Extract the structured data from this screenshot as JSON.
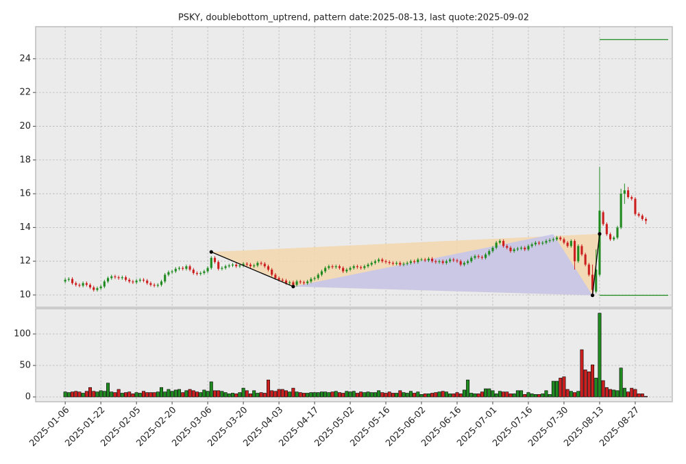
{
  "chart_data": {
    "type": "candlestick",
    "title": "PSKY, doublebottom_uptrend, pattern date:2025-08-13, last quote:2025-09-02",
    "x": [
      "2025-01-06",
      "2025-01-07",
      "2025-01-08",
      "2025-01-10",
      "2025-01-13",
      "2025-01-14",
      "2025-01-15",
      "2025-01-16",
      "2025-01-17",
      "2025-01-21",
      "2025-01-22",
      "2025-01-23",
      "2025-01-24",
      "2025-01-27",
      "2025-01-28",
      "2025-01-29",
      "2025-01-30",
      "2025-01-31",
      "2025-02-03",
      "2025-02-04",
      "2025-02-05",
      "2025-02-06",
      "2025-02-07",
      "2025-02-10",
      "2025-02-11",
      "2025-02-12",
      "2025-02-13",
      "2025-02-14",
      "2025-02-18",
      "2025-02-19",
      "2025-02-20",
      "2025-02-21",
      "2025-02-24",
      "2025-02-25",
      "2025-02-26",
      "2025-02-27",
      "2025-02-28",
      "2025-03-03",
      "2025-03-04",
      "2025-03-05",
      "2025-03-06",
      "2025-03-07",
      "2025-03-10",
      "2025-03-11",
      "2025-03-12",
      "2025-03-13",
      "2025-03-14",
      "2025-03-17",
      "2025-03-18",
      "2025-03-19",
      "2025-03-20",
      "2025-03-21",
      "2025-03-24",
      "2025-03-25",
      "2025-03-26",
      "2025-03-27",
      "2025-03-28",
      "2025-03-31",
      "2025-04-01",
      "2025-04-02",
      "2025-04-03",
      "2025-04-04",
      "2025-04-07",
      "2025-04-08",
      "2025-04-09",
      "2025-04-10",
      "2025-04-11",
      "2025-04-14",
      "2025-04-15",
      "2025-04-16",
      "2025-04-17",
      "2025-04-21",
      "2025-04-22",
      "2025-04-23",
      "2025-04-24",
      "2025-04-25",
      "2025-04-28",
      "2025-04-29",
      "2025-04-30",
      "2025-05-01",
      "2025-05-02",
      "2025-05-05",
      "2025-05-06",
      "2025-05-07",
      "2025-05-08",
      "2025-05-09",
      "2025-05-12",
      "2025-05-13",
      "2025-05-14",
      "2025-05-15",
      "2025-05-16",
      "2025-05-19",
      "2025-05-20",
      "2025-05-21",
      "2025-05-22",
      "2025-05-23",
      "2025-05-27",
      "2025-05-28",
      "2025-05-29",
      "2025-05-30",
      "2025-06-02",
      "2025-06-03",
      "2025-06-04",
      "2025-06-05",
      "2025-06-06",
      "2025-06-09",
      "2025-06-10",
      "2025-06-11",
      "2025-06-12",
      "2025-06-13",
      "2025-06-16",
      "2025-06-17",
      "2025-06-18",
      "2025-06-20",
      "2025-06-23",
      "2025-06-24",
      "2025-06-25",
      "2025-06-26",
      "2025-06-27",
      "2025-06-30",
      "2025-07-01",
      "2025-07-02",
      "2025-07-03",
      "2025-07-07",
      "2025-07-08",
      "2025-07-09",
      "2025-07-10",
      "2025-07-11",
      "2025-07-14",
      "2025-07-15",
      "2025-07-16",
      "2025-07-17",
      "2025-07-18",
      "2025-07-21",
      "2025-07-22",
      "2025-07-23",
      "2025-07-24",
      "2025-07-25",
      "2025-07-28",
      "2025-07-29",
      "2025-07-30",
      "2025-07-31",
      "2025-08-01",
      "2025-08-04",
      "2025-08-05",
      "2025-08-06",
      "2025-08-07",
      "2025-08-08",
      "2025-08-11",
      "2025-08-12",
      "2025-08-13",
      "2025-08-14",
      "2025-08-15",
      "2025-08-18",
      "2025-08-19",
      "2025-08-20",
      "2025-08-21",
      "2025-08-22",
      "2025-08-25",
      "2025-08-26",
      "2025-08-27",
      "2025-08-28",
      "2025-08-29",
      "2025-09-02"
    ],
    "open": [
      10.8,
      10.9,
      10.95,
      10.7,
      10.6,
      10.55,
      10.7,
      10.6,
      10.45,
      10.3,
      10.4,
      10.5,
      10.8,
      11.0,
      11.1,
      11.05,
      11.0,
      11.05,
      10.9,
      10.8,
      10.75,
      10.85,
      10.9,
      10.85,
      10.7,
      10.6,
      10.55,
      10.6,
      10.8,
      11.2,
      11.35,
      11.4,
      11.55,
      11.6,
      11.55,
      11.7,
      11.5,
      11.3,
      11.25,
      11.3,
      11.4,
      11.6,
      12.2,
      11.95,
      11.55,
      11.6,
      11.7,
      11.75,
      11.8,
      11.7,
      11.75,
      11.85,
      11.8,
      11.7,
      11.75,
      11.9,
      11.85,
      11.7,
      11.5,
      11.2,
      11.0,
      10.9,
      10.85,
      10.7,
      10.75,
      10.6,
      10.8,
      10.75,
      10.7,
      10.8,
      10.95,
      11.0,
      11.2,
      11.4,
      11.6,
      11.7,
      11.65,
      11.7,
      11.6,
      11.4,
      11.5,
      11.6,
      11.7,
      11.65,
      11.6,
      11.7,
      11.8,
      11.9,
      12.0,
      12.1,
      12.0,
      11.95,
      11.9,
      11.85,
      11.9,
      11.8,
      11.85,
      11.9,
      12.0,
      11.95,
      12.1,
      12.1,
      12.05,
      12.15,
      12.0,
      11.95,
      12.0,
      11.9,
      12.0,
      12.1,
      12.05,
      12.0,
      11.8,
      11.9,
      12.0,
      12.2,
      12.3,
      12.25,
      12.2,
      12.4,
      12.6,
      12.8,
      13.1,
      13.2,
      12.9,
      12.8,
      12.6,
      12.7,
      12.75,
      12.8,
      12.7,
      12.9,
      13.0,
      13.1,
      13.05,
      13.1,
      13.2,
      13.25,
      13.3,
      13.4,
      13.3,
      13.1,
      12.9,
      13.2,
      12.0,
      12.9,
      12.4,
      11.8,
      11.2,
      10.2,
      11.2,
      14.9,
      14.2,
      13.6,
      13.3,
      13.4,
      14.0,
      16.0,
      16.2,
      15.8,
      15.7,
      14.8,
      14.7,
      14.5
    ],
    "high": [
      11.0,
      11.05,
      11.05,
      10.8,
      10.7,
      10.8,
      10.8,
      10.7,
      10.55,
      10.5,
      10.6,
      10.9,
      11.1,
      11.2,
      11.2,
      11.15,
      11.15,
      11.15,
      11.0,
      10.9,
      10.95,
      11.0,
      11.0,
      10.95,
      10.8,
      10.7,
      10.7,
      10.9,
      11.3,
      11.45,
      11.5,
      11.65,
      11.7,
      11.7,
      11.8,
      11.8,
      11.6,
      11.4,
      11.4,
      11.5,
      11.7,
      12.3,
      12.3,
      12.05,
      11.7,
      11.8,
      11.85,
      11.9,
      11.9,
      11.85,
      11.95,
      11.95,
      11.9,
      11.85,
      12.0,
      12.0,
      11.95,
      11.8,
      11.6,
      11.3,
      11.1,
      11.0,
      10.95,
      10.85,
      10.85,
      10.9,
      10.9,
      10.85,
      10.9,
      11.05,
      11.1,
      11.3,
      11.5,
      11.7,
      11.8,
      11.8,
      11.8,
      11.8,
      11.7,
      11.6,
      11.7,
      11.8,
      11.8,
      11.75,
      11.8,
      11.9,
      12.0,
      12.1,
      12.2,
      12.2,
      12.1,
      12.05,
      12.0,
      12.0,
      12.0,
      11.95,
      12.0,
      12.1,
      12.1,
      12.2,
      12.2,
      12.2,
      12.25,
      12.25,
      12.1,
      12.1,
      12.1,
      12.1,
      12.2,
      12.2,
      12.15,
      12.1,
      12.0,
      12.1,
      12.3,
      12.4,
      12.4,
      12.35,
      12.5,
      12.7,
      12.9,
      13.2,
      13.3,
      13.3,
      13.0,
      12.9,
      12.8,
      12.85,
      12.9,
      12.9,
      13.0,
      13.1,
      13.2,
      13.2,
      13.2,
      13.3,
      13.35,
      13.4,
      13.5,
      13.5,
      13.4,
      13.2,
      13.3,
      13.3,
      13.0,
      13.0,
      12.5,
      11.9,
      11.8,
      12.7,
      17.6,
      15.0,
      14.3,
      13.7,
      13.5,
      14.1,
      16.3,
      16.6,
      16.4,
      15.9,
      15.8,
      14.9,
      14.8,
      14.6
    ],
    "low": [
      10.7,
      10.8,
      10.6,
      10.5,
      10.45,
      10.45,
      10.5,
      10.35,
      10.2,
      10.2,
      10.3,
      10.4,
      10.7,
      10.9,
      10.95,
      10.9,
      10.9,
      10.8,
      10.7,
      10.65,
      10.65,
      10.75,
      10.75,
      10.6,
      10.5,
      10.45,
      10.45,
      10.5,
      10.7,
      11.1,
      11.25,
      11.3,
      11.45,
      11.45,
      11.45,
      11.4,
      11.2,
      11.15,
      11.15,
      11.2,
      11.3,
      11.5,
      11.85,
      11.45,
      11.45,
      11.5,
      11.6,
      11.65,
      11.6,
      11.6,
      11.65,
      11.7,
      11.6,
      11.6,
      11.65,
      11.75,
      11.6,
      11.4,
      11.1,
      10.9,
      10.8,
      10.75,
      10.6,
      10.6,
      10.5,
      10.5,
      10.65,
      10.6,
      10.6,
      10.7,
      10.85,
      10.9,
      11.1,
      11.3,
      11.5,
      11.55,
      11.55,
      11.5,
      11.3,
      11.3,
      11.4,
      11.5,
      11.55,
      11.5,
      11.5,
      11.6,
      11.7,
      11.8,
      11.9,
      11.9,
      11.85,
      11.8,
      11.75,
      11.75,
      11.7,
      11.7,
      11.75,
      11.8,
      11.85,
      11.85,
      12.0,
      11.95,
      11.95,
      11.9,
      11.85,
      11.85,
      11.8,
      11.8,
      11.9,
      11.95,
      11.9,
      11.7,
      11.7,
      11.8,
      11.9,
      12.1,
      12.15,
      12.1,
      12.1,
      12.3,
      12.5,
      12.7,
      13.0,
      12.8,
      12.7,
      12.5,
      12.5,
      12.6,
      12.65,
      12.6,
      12.6,
      12.8,
      12.9,
      12.95,
      12.95,
      13.0,
      13.1,
      13.15,
      13.2,
      13.2,
      13.0,
      12.8,
      12.8,
      11.5,
      11.9,
      12.3,
      11.7,
      11.1,
      9.95,
      10.1,
      11.1,
      14.1,
      13.5,
      13.2,
      13.2,
      13.3,
      13.9,
      15.4,
      15.7,
      15.6,
      14.7,
      14.6,
      14.4,
      14.2
    ],
    "close": [
      10.9,
      10.95,
      10.7,
      10.6,
      10.55,
      10.7,
      10.6,
      10.45,
      10.3,
      10.4,
      10.5,
      10.8,
      11.0,
      11.1,
      11.05,
      11.0,
      11.05,
      10.9,
      10.8,
      10.75,
      10.85,
      10.9,
      10.85,
      10.7,
      10.6,
      10.55,
      10.6,
      10.8,
      11.2,
      11.35,
      11.4,
      11.55,
      11.6,
      11.55,
      11.7,
      11.5,
      11.3,
      11.25,
      11.3,
      11.4,
      11.6,
      12.2,
      11.95,
      11.55,
      11.6,
      11.7,
      11.75,
      11.8,
      11.7,
      11.75,
      11.85,
      11.8,
      11.7,
      11.75,
      11.9,
      11.85,
      11.7,
      11.5,
      11.2,
      11.0,
      10.9,
      10.85,
      10.7,
      10.75,
      10.6,
      10.8,
      10.75,
      10.7,
      10.8,
      10.95,
      11.0,
      11.2,
      11.4,
      11.6,
      11.7,
      11.65,
      11.7,
      11.6,
      11.4,
      11.5,
      11.6,
      11.7,
      11.65,
      11.6,
      11.7,
      11.8,
      11.9,
      12.0,
      12.1,
      12.0,
      11.95,
      11.9,
      11.85,
      11.9,
      11.8,
      11.85,
      11.9,
      12.0,
      11.95,
      12.1,
      12.1,
      12.05,
      12.15,
      12.0,
      11.95,
      12.0,
      11.9,
      12.0,
      12.1,
      12.05,
      12.0,
      11.8,
      11.9,
      12.0,
      12.2,
      12.3,
      12.25,
      12.2,
      12.4,
      12.6,
      12.8,
      13.1,
      13.2,
      12.9,
      12.8,
      12.6,
      12.7,
      12.75,
      12.8,
      12.7,
      12.9,
      13.0,
      13.1,
      13.05,
      13.1,
      13.2,
      13.25,
      13.3,
      13.4,
      13.3,
      13.1,
      12.9,
      13.2,
      12.0,
      12.9,
      12.4,
      11.8,
      11.2,
      10.3,
      11.5,
      15.0,
      14.2,
      13.6,
      13.3,
      13.4,
      14.0,
      16.0,
      16.2,
      15.8,
      15.7,
      14.8,
      14.7,
      14.5,
      14.4
    ],
    "volume": [
      8,
      7,
      8,
      9,
      8,
      6,
      9,
      15,
      9,
      8,
      10,
      9,
      22,
      8,
      7,
      12,
      6,
      7,
      8,
      5,
      7,
      6,
      9,
      7,
      7,
      7,
      8,
      15,
      8,
      12,
      9,
      11,
      12,
      7,
      10,
      12,
      10,
      8,
      7,
      11,
      9,
      24,
      10,
      10,
      9,
      7,
      5,
      6,
      5,
      7,
      14,
      10,
      5,
      10,
      6,
      7,
      6,
      27,
      10,
      9,
      12,
      12,
      10,
      8,
      14,
      8,
      7,
      6,
      6,
      7,
      7,
      7,
      8,
      8,
      7,
      8,
      9,
      7,
      6,
      9,
      8,
      9,
      6,
      8,
      7,
      8,
      7,
      7,
      10,
      7,
      6,
      8,
      6,
      6,
      10,
      7,
      6,
      9,
      6,
      8,
      4,
      5,
      5,
      6,
      7,
      8,
      9,
      8,
      5,
      5,
      7,
      5,
      11,
      27,
      6,
      5,
      5,
      8,
      13,
      13,
      10,
      5,
      9,
      8,
      8,
      5,
      5,
      10,
      10,
      4,
      7,
      5,
      4,
      4,
      5,
      10,
      4,
      25,
      25,
      30,
      32,
      12,
      9,
      7,
      9,
      75,
      43,
      40,
      51,
      30,
      133,
      26,
      15,
      12,
      11,
      10,
      46,
      14,
      8,
      14,
      12,
      5,
      5,
      1
    ],
    "up_color": "#1f8a1f",
    "down_color": "#cc1f1f",
    "ylim": [
      9.27,
      25.9
    ],
    "yticks": [
      10,
      12,
      14,
      16,
      18,
      20,
      22,
      24
    ],
    "volume_ylim": [
      -7.6,
      140.2
    ],
    "volume_yticks": [
      0,
      50,
      100
    ],
    "xticks": [
      "2025-01-06",
      "2025-01-22",
      "2025-02-05",
      "2025-02-20",
      "2025-03-06",
      "2025-03-20",
      "2025-04-03",
      "2025-04-17",
      "2025-05-02",
      "2025-05-16",
      "2025-06-02",
      "2025-06-16",
      "2025-07-01",
      "2025-07-16",
      "2025-07-30",
      "2025-08-13",
      "2025-08-27"
    ],
    "grid": true,
    "polygons": [
      {
        "x": [
          "2025-03-07",
          "2025-08-13",
          "2025-08-11",
          "2025-04-09"
        ],
        "y": [
          12.55,
          13.62,
          9.98,
          10.5
        ],
        "color": "#f3d7ad"
      },
      {
        "x": [
          "2025-04-09",
          "2025-07-25",
          "2025-08-11"
        ],
        "y": [
          10.5,
          13.6,
          9.98
        ],
        "color": "#c4c4ee"
      }
    ],
    "polylines": [
      {
        "x": [
          "2025-03-07",
          "2025-04-09"
        ],
        "y": [
          12.55,
          10.5
        ],
        "color": "#000000"
      },
      {
        "x": [
          "2025-08-11",
          "2025-08-13"
        ],
        "y": [
          9.98,
          13.62
        ],
        "color": "#000000"
      }
    ],
    "levels": [
      {
        "value": 25.14,
        "from": "2025-08-13",
        "color": "#1a8a1a"
      },
      {
        "value": 9.98,
        "from": "2025-08-13",
        "color": "#1a8a1a"
      }
    ]
  }
}
